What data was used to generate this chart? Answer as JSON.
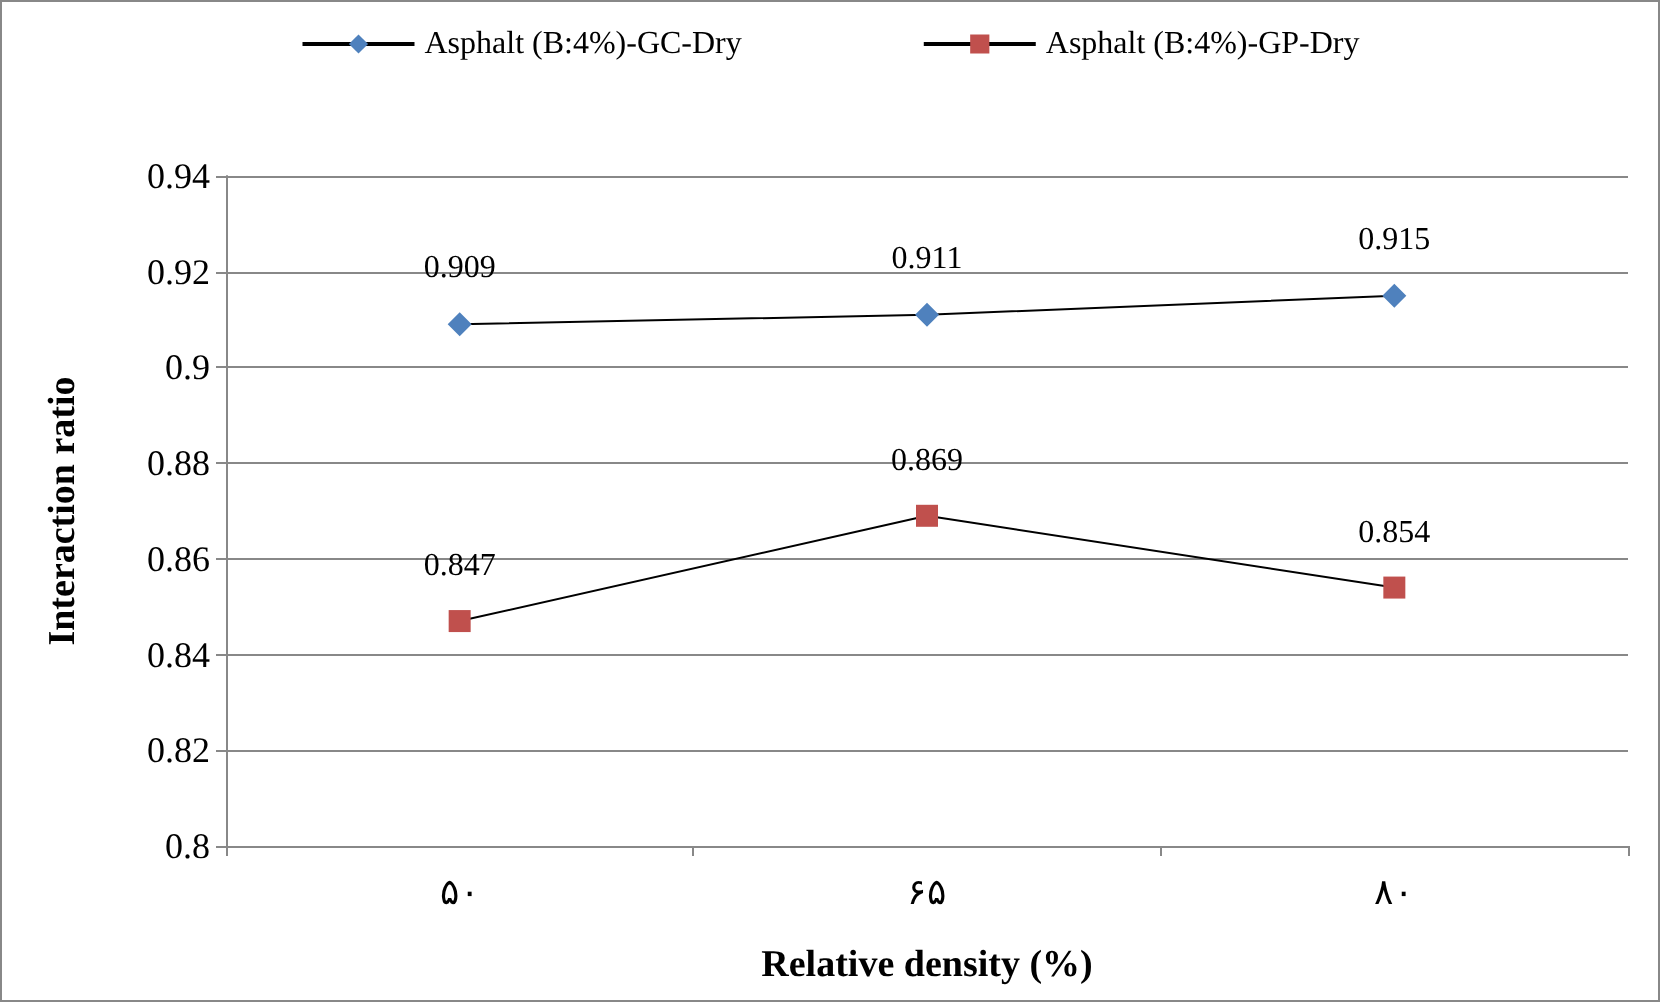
{
  "chart_data": {
    "type": "line",
    "xlabel": "Relative density (%)",
    "ylabel": "Interaction ratio",
    "categories": [
      "۵۰",
      "۶۵",
      "۸۰"
    ],
    "series": [
      {
        "name": "Asphalt (B:4%)-GC-Dry",
        "color": "#4f81bd",
        "marker": "diamond",
        "values": [
          0.909,
          0.911,
          0.915
        ]
      },
      {
        "name": "Asphalt (B:4%)-GP-Dry",
        "color": "#c0504d",
        "marker": "square",
        "values": [
          0.847,
          0.869,
          0.854
        ]
      }
    ],
    "ylim": [
      0.8,
      0.94
    ],
    "yticks": [
      0.8,
      0.82,
      0.84,
      0.86,
      0.88,
      0.9,
      0.92,
      0.94
    ],
    "grid": "y",
    "legend": "top",
    "data_labels": true
  }
}
